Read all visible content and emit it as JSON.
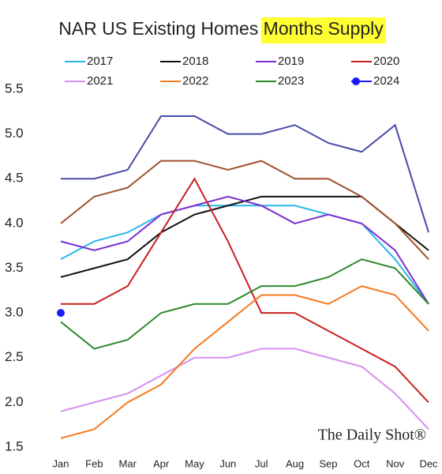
{
  "chart_data": {
    "type": "line",
    "title": "NAR US Existing Homes",
    "title_highlight": "Months Supply",
    "watermark": "The Daily Shot®",
    "categories": [
      "Jan",
      "Feb",
      "Mar",
      "Apr",
      "May",
      "Jun",
      "Jul",
      "Aug",
      "Sep",
      "Oct",
      "Nov",
      "Dec"
    ],
    "series": [
      {
        "name": "2017",
        "color": "#29b6e8",
        "values": [
          3.6,
          3.8,
          3.9,
          4.1,
          4.2,
          4.2,
          4.2,
          4.2,
          4.1,
          4.0,
          3.6,
          3.1
        ]
      },
      {
        "name": "2018",
        "color": "#111111",
        "values": [
          3.4,
          3.5,
          3.6,
          3.9,
          4.1,
          4.2,
          4.3,
          4.3,
          4.3,
          4.3,
          4.0,
          3.7
        ]
      },
      {
        "name": "2019",
        "color": "#7b2fd0",
        "values": [
          3.8,
          3.7,
          3.8,
          4.1,
          4.2,
          4.3,
          4.2,
          4.0,
          4.1,
          4.0,
          3.7,
          3.1
        ]
      },
      {
        "name": "2020",
        "color": "#c8201f",
        "values": [
          3.1,
          3.1,
          3.3,
          3.9,
          4.5,
          3.8,
          3.0,
          3.0,
          2.8,
          2.6,
          2.4,
          2.0
        ]
      },
      {
        "name": "2021",
        "color": "#d88ef0",
        "values": [
          1.9,
          2.0,
          2.1,
          2.3,
          2.5,
          2.5,
          2.6,
          2.6,
          2.5,
          2.4,
          2.1,
          1.7
        ]
      },
      {
        "name": "2022",
        "color": "#f5791f",
        "values": [
          1.6,
          1.7,
          2.0,
          2.2,
          2.6,
          2.9,
          3.2,
          3.2,
          3.1,
          3.3,
          3.2,
          2.8
        ]
      },
      {
        "name": "2023",
        "color": "#2a8a2a",
        "values": [
          2.9,
          2.6,
          2.7,
          3.0,
          3.1,
          3.1,
          3.3,
          3.3,
          3.4,
          3.6,
          3.5,
          3.1
        ]
      },
      {
        "name": "2024",
        "color": "#1a1aff",
        "marker": "circle",
        "values": [
          3.0,
          null,
          null,
          null,
          null,
          null,
          null,
          null,
          null,
          null,
          null,
          null
        ]
      },
      {
        "color": "#4a4aa8",
        "values": [
          4.5,
          4.5,
          4.6,
          5.2,
          5.2,
          5.0,
          5.0,
          5.1,
          4.9,
          4.8,
          5.1,
          3.9
        ]
      },
      {
        "color": "#a0522d",
        "values": [
          4.0,
          4.3,
          4.4,
          4.7,
          4.7,
          4.6,
          4.7,
          4.5,
          4.5,
          4.3,
          4.0,
          3.6
        ]
      }
    ],
    "ylim": [
      1.5,
      5.5
    ],
    "yticks": [
      1.5,
      {
        "value": 2,
        "label": "2.0"
      },
      2.5,
      {
        "value": 3,
        "label": "3.0"
      },
      3.5,
      {
        "value": 4,
        "label": "4.0"
      },
      4.5,
      {
        "value": 5,
        "label": "5.0"
      },
      5.5
    ],
    "grid": false,
    "legend": "top"
  }
}
